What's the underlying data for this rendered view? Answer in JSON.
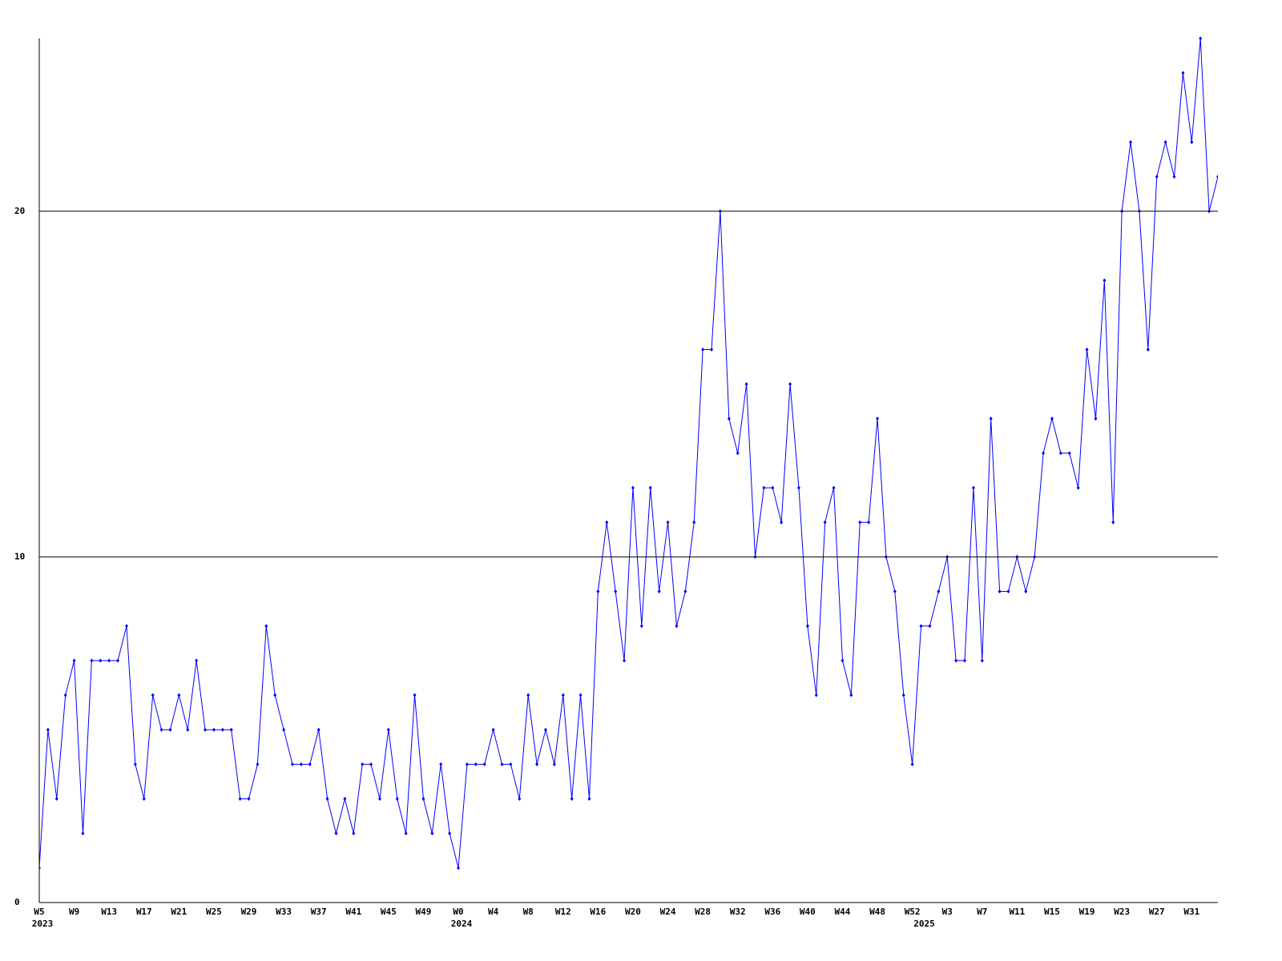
{
  "chart_data": {
    "type": "line",
    "categories": [
      "W5",
      null,
      null,
      null,
      "W9",
      null,
      null,
      null,
      "W13",
      null,
      null,
      null,
      "W17",
      null,
      null,
      null,
      "W21",
      null,
      null,
      null,
      "W25",
      null,
      null,
      null,
      "W29",
      null,
      null,
      null,
      "W33",
      null,
      null,
      null,
      "W37",
      null,
      null,
      null,
      "W41",
      null,
      null,
      null,
      "W45",
      null,
      null,
      null,
      "W49",
      null,
      null,
      null,
      "W0",
      null,
      null,
      null,
      "W4",
      null,
      null,
      null,
      "W8",
      null,
      null,
      null,
      "W12",
      null,
      null,
      null,
      "W16",
      null,
      null,
      null,
      "W20",
      null,
      null,
      null,
      "W24",
      null,
      null,
      null,
      "W28",
      null,
      null,
      null,
      "W32",
      null,
      null,
      null,
      "W36",
      null,
      null,
      null,
      "W40",
      null,
      null,
      null,
      "W44",
      null,
      null,
      null,
      "W48",
      null,
      null,
      null,
      "W52",
      null,
      null,
      null,
      "W3",
      null,
      null,
      null,
      "W7",
      null,
      null,
      null,
      "W11",
      null,
      null,
      null,
      "W15",
      null,
      null,
      null,
      "W19",
      null,
      null,
      null,
      "W23",
      null,
      null,
      null,
      "W27",
      null,
      null,
      null,
      "W31",
      null,
      null,
      null
    ],
    "category_years": [
      "2023",
      null,
      null,
      null,
      null,
      null,
      null,
      null,
      null,
      null,
      null,
      null,
      null,
      null,
      null,
      null,
      null,
      null,
      null,
      null,
      null,
      null,
      null,
      null,
      null,
      null,
      null,
      null,
      null,
      null,
      null,
      null,
      null,
      null,
      null,
      null,
      null,
      null,
      null,
      null,
      null,
      null,
      null,
      null,
      null,
      null,
      null,
      null,
      "2024",
      null,
      null,
      null,
      null,
      null,
      null,
      null,
      null,
      null,
      null,
      null,
      null,
      null,
      null,
      null,
      null,
      null,
      null,
      null,
      null,
      null,
      null,
      null,
      null,
      null,
      null,
      null,
      null,
      null,
      null,
      null,
      null,
      null,
      null,
      null,
      null,
      null,
      null,
      null,
      null,
      null,
      null,
      null,
      null,
      null,
      null,
      null,
      null,
      null,
      null,
      null,
      null,
      "2025",
      null,
      null,
      null,
      null,
      null,
      null,
      null,
      null,
      null,
      null,
      null,
      null,
      null,
      null,
      null,
      null,
      null,
      null,
      null,
      null,
      null,
      null,
      null,
      null,
      null,
      null,
      null,
      null,
      null,
      null,
      null,
      null,
      null,
      null
    ],
    "values": [
      1,
      5,
      3,
      6,
      7,
      2,
      7,
      7,
      7,
      7,
      8,
      4,
      3,
      6,
      5,
      5,
      6,
      5,
      7,
      5,
      5,
      5,
      5,
      3,
      3,
      4,
      8,
      6,
      5,
      4,
      4,
      4,
      5,
      3,
      2,
      3,
      2,
      4,
      4,
      3,
      5,
      3,
      2,
      6,
      3,
      2,
      4,
      2,
      1,
      4,
      4,
      4,
      5,
      4,
      4,
      3,
      6,
      4,
      5,
      4,
      6,
      3,
      6,
      3,
      9,
      11,
      9,
      7,
      12,
      8,
      12,
      9,
      11,
      8,
      9,
      11,
      16,
      16,
      20,
      14,
      13,
      15,
      10,
      12,
      12,
      11,
      15,
      12,
      8,
      6,
      11,
      12,
      7,
      6,
      11,
      11,
      14,
      10,
      9,
      6,
      4,
      8,
      8,
      9,
      10,
      7,
      7,
      12,
      7,
      14,
      9,
      9,
      10,
      9,
      10,
      13,
      14,
      13,
      13,
      12,
      16,
      14,
      18,
      11,
      20,
      22,
      20,
      16,
      21,
      22,
      21,
      24,
      22,
      25,
      20,
      21
    ],
    "color": "#0000ff",
    "ylim": [
      0,
      25
    ],
    "yticks": [
      0,
      10,
      20
    ],
    "grid": true
  }
}
